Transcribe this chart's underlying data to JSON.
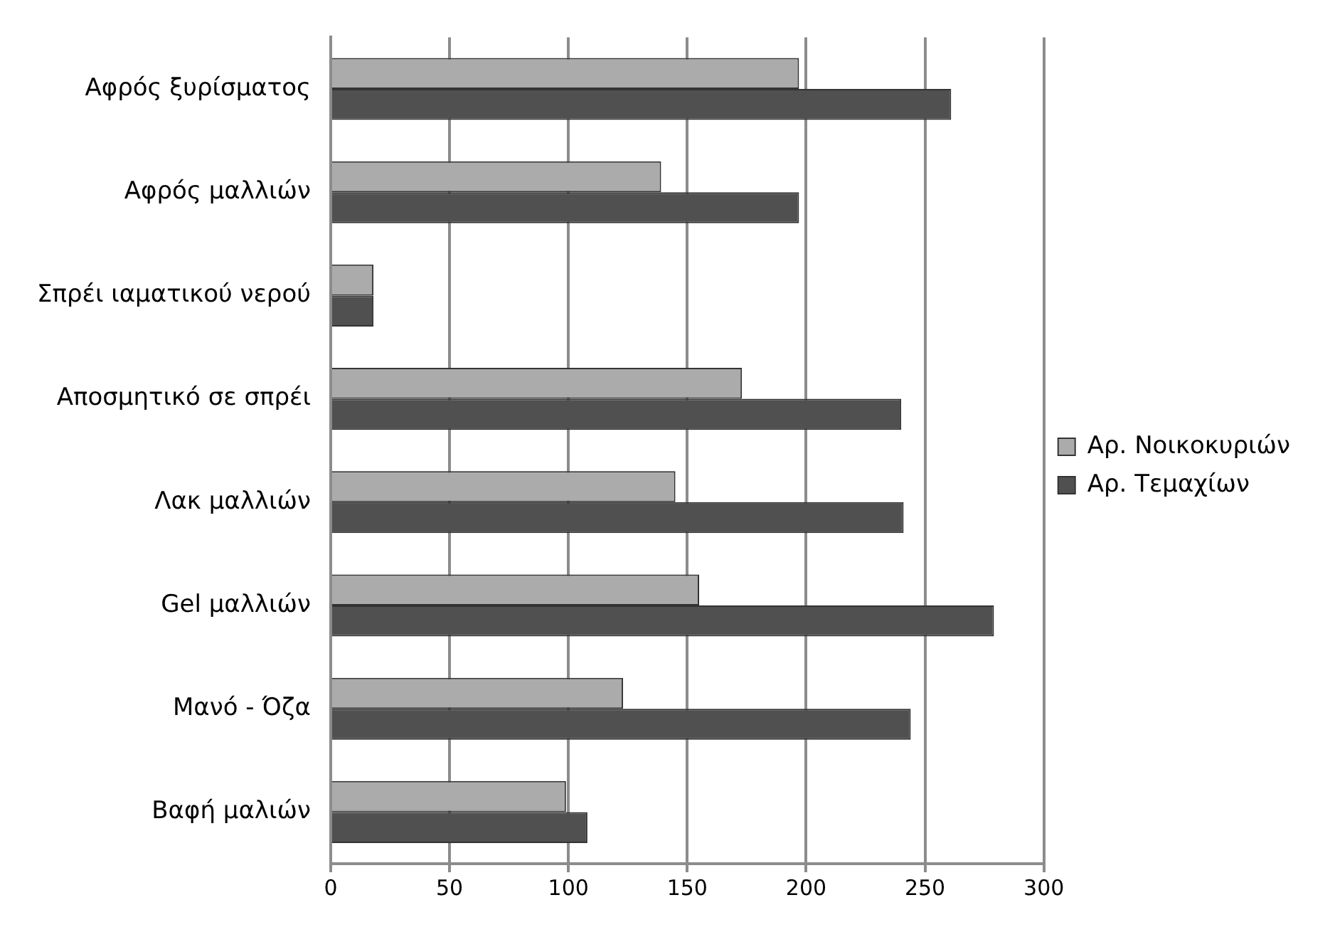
{
  "chart_data": {
    "type": "bar",
    "orientation": "horizontal",
    "categories": [
      "Αφρός ξυρίσματος",
      "Αφρός μαλλιών",
      "Σπρέι ιαματικού νερού",
      "Αποσμητικό σε σπρέι",
      "Λακ μαλλιών",
      "Gel μαλλιών",
      "Μανό - Όζα",
      "Βαφή μαλιών"
    ],
    "series": [
      {
        "name": "Αρ. Νοικοκυριών",
        "color": "#ababab",
        "values": [
          197,
          139,
          18,
          173,
          145,
          155,
          123,
          99
        ]
      },
      {
        "name": "Αρ. Τεμαχίων",
        "color": "#505050",
        "values": [
          261,
          197,
          18,
          240,
          241,
          279,
          244,
          108
        ]
      }
    ],
    "xlim": [
      0,
      300
    ],
    "xticks": [
      0,
      50,
      100,
      150,
      200,
      250,
      300
    ],
    "grid": "x",
    "legend": "right"
  }
}
